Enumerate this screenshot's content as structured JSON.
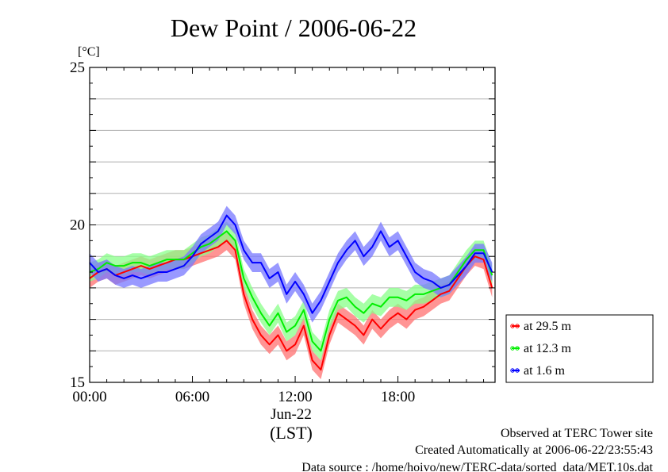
{
  "chart_data": {
    "type": "line",
    "title": "Dew Point / 2006-06-22",
    "ylabel": "[°C]",
    "xlabel": "(LST)",
    "x_date_label": "Jun-22",
    "ylim": [
      15,
      25
    ],
    "y_ticks": [
      "15",
      "20",
      "25"
    ],
    "y_tick_values": [
      15,
      20,
      25
    ],
    "y_grid_values": [
      16,
      17,
      18,
      19,
      20,
      21,
      22,
      23,
      24
    ],
    "xlim": [
      0,
      23.67
    ],
    "x_ticks": [
      "00:00",
      "06:00",
      "12:00",
      "18:00"
    ],
    "x_tick_values": [
      0,
      6,
      12,
      18
    ],
    "grid": true,
    "legend_position": "right",
    "x_unit": "hour",
    "series": [
      {
        "name": "at 29.5 m",
        "color": "#ff0000",
        "light_color": "#ff7070",
        "x": [
          0,
          0.5,
          1,
          1.5,
          2,
          2.5,
          3,
          3.5,
          4,
          4.5,
          5,
          5.5,
          6,
          6.5,
          7,
          7.5,
          8,
          8.5,
          9,
          9.5,
          10,
          10.5,
          11,
          11.5,
          12,
          12.5,
          13,
          13.5,
          14,
          14.5,
          15,
          15.5,
          16,
          16.5,
          17,
          17.5,
          18,
          18.5,
          19,
          19.5,
          20,
          20.5,
          21,
          21.5,
          22,
          22.5,
          23,
          23.5
        ],
        "values": [
          18.3,
          18.5,
          18.6,
          18.4,
          18.5,
          18.6,
          18.7,
          18.6,
          18.7,
          18.8,
          18.9,
          18.9,
          19.0,
          19.1,
          19.2,
          19.3,
          19.5,
          19.2,
          17.8,
          17.0,
          16.5,
          16.2,
          16.5,
          16.0,
          16.2,
          16.8,
          15.7,
          15.4,
          16.5,
          17.2,
          17.0,
          16.8,
          16.5,
          17.0,
          16.7,
          17.0,
          17.2,
          17.0,
          17.3,
          17.4,
          17.6,
          17.8,
          17.9,
          18.3,
          18.7,
          19.0,
          18.9,
          18.0
        ],
        "band": 0.3
      },
      {
        "name": "at 12.3 m",
        "color": "#00ee00",
        "light_color": "#88ff88",
        "x": [
          0,
          0.5,
          1,
          1.5,
          2,
          2.5,
          3,
          3.5,
          4,
          4.5,
          5,
          5.5,
          6,
          6.5,
          7,
          7.5,
          8,
          8.5,
          9,
          9.5,
          10,
          10.5,
          11,
          11.5,
          12,
          12.5,
          13,
          13.5,
          14,
          14.5,
          15,
          15.5,
          16,
          16.5,
          17,
          17.5,
          18,
          18.5,
          19,
          19.5,
          20,
          20.5,
          21,
          21.5,
          22,
          22.5,
          23,
          23.5
        ],
        "values": [
          18.5,
          18.6,
          18.8,
          18.7,
          18.7,
          18.8,
          18.8,
          18.7,
          18.8,
          18.9,
          18.9,
          18.9,
          19.1,
          19.3,
          19.4,
          19.6,
          19.8,
          19.5,
          18.3,
          17.7,
          17.2,
          16.8,
          17.2,
          16.6,
          16.8,
          17.3,
          16.3,
          16.0,
          17.0,
          17.6,
          17.7,
          17.4,
          17.2,
          17.5,
          17.4,
          17.7,
          17.7,
          17.6,
          17.8,
          17.8,
          17.9,
          18.0,
          18.1,
          18.5,
          18.9,
          19.2,
          19.2,
          18.4
        ],
        "band": 0.3
      },
      {
        "name": "at 1.6 m",
        "color": "#0000ff",
        "light_color": "#7777ff",
        "x": [
          0,
          0.5,
          1,
          1.5,
          2,
          2.5,
          3,
          3.5,
          4,
          4.5,
          5,
          5.5,
          6,
          6.5,
          7,
          7.5,
          8,
          8.5,
          9,
          9.5,
          10,
          10.5,
          11,
          11.5,
          12,
          12.5,
          13,
          13.5,
          14,
          14.5,
          15,
          15.5,
          16,
          16.5,
          17,
          17.5,
          18,
          18.5,
          19,
          19.5,
          20,
          20.5,
          21,
          21.5,
          22,
          22.5,
          23,
          23.5
        ],
        "values": [
          18.8,
          18.5,
          18.6,
          18.4,
          18.3,
          18.4,
          18.3,
          18.4,
          18.5,
          18.5,
          18.6,
          18.7,
          19.0,
          19.4,
          19.6,
          19.8,
          20.3,
          20.0,
          19.2,
          18.8,
          18.8,
          18.3,
          18.5,
          17.8,
          18.2,
          17.8,
          17.2,
          17.6,
          18.2,
          18.8,
          19.2,
          19.5,
          19.0,
          19.3,
          19.8,
          19.3,
          19.5,
          19.0,
          18.5,
          18.3,
          18.2,
          18.0,
          18.1,
          18.4,
          18.7,
          19.1,
          19.1,
          18.5
        ],
        "band": 0.3
      }
    ]
  },
  "footer": {
    "site": "Observed at TERC Tower site",
    "created": "Created Automatically at 2006-06-22/23:55:43",
    "source": "Data source : /home/hoivo/new/TERC-data/sorted_data/MET.10s.dat"
  }
}
